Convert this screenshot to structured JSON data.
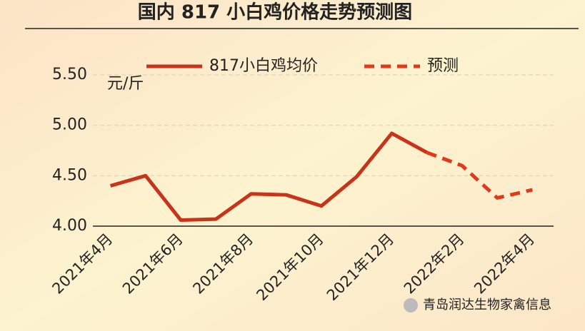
{
  "chart_data": {
    "type": "line",
    "title": "国内 817 小白鸡价格走势预测图",
    "y_unit": "元/斤",
    "categories": [
      "2021年4月",
      null,
      "2021年6月",
      null,
      "2021年8月",
      null,
      "2021年10月",
      null,
      "2021年12月",
      null,
      "2022年2月",
      null,
      "2022年4月"
    ],
    "series": [
      {
        "name": "817小白鸡均价",
        "color": "#c8341a",
        "dash": false,
        "values": [
          4.4,
          4.5,
          4.06,
          4.07,
          4.32,
          4.31,
          4.2,
          4.49,
          4.92,
          4.73,
          null,
          null,
          null
        ]
      },
      {
        "name": "预测",
        "color": "#e03a1c",
        "dash": true,
        "values": [
          null,
          null,
          null,
          null,
          null,
          null,
          null,
          null,
          null,
          4.73,
          4.6,
          4.28,
          4.36
        ]
      }
    ],
    "ylim": [
      4.0,
      5.5
    ],
    "yticks": [
      {
        "value": 4,
        "label": "4.00"
      },
      {
        "value": 4.5,
        "label": "4.50"
      },
      {
        "value": 5,
        "label": "5.00"
      },
      {
        "value": 5.5,
        "label": "5.50"
      }
    ],
    "grid": true,
    "watermark": "青岛润达生物家禽信息"
  }
}
